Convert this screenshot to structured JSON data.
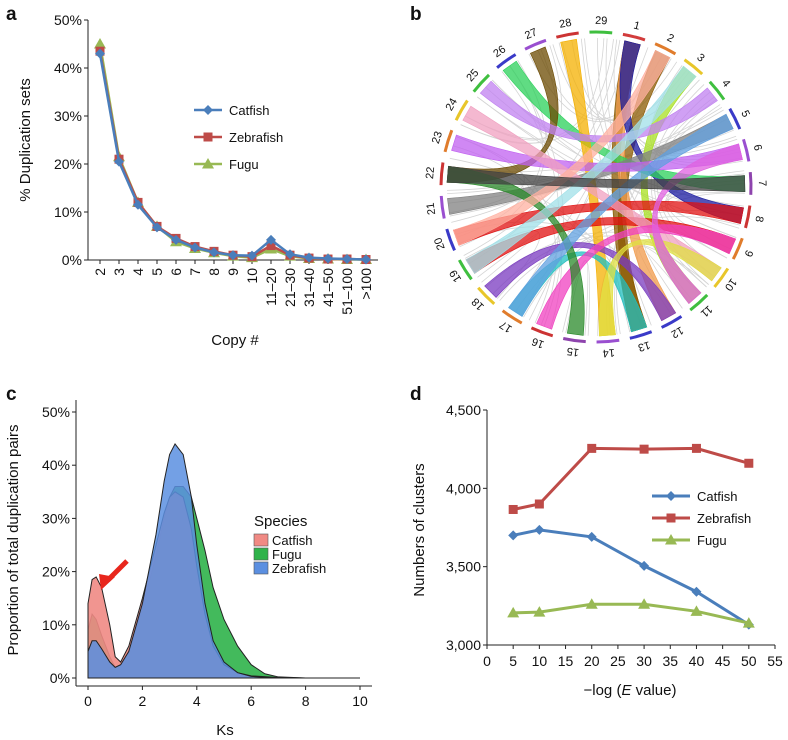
{
  "chart_data": [
    {
      "panel": "a",
      "type": "line",
      "title": "",
      "xlabel": "Copy #",
      "ylabel": "% Duplication sets",
      "categories": [
        "2",
        "3",
        "4",
        "5",
        "6",
        "7",
        "8",
        "9",
        "10",
        "11–20",
        "21–30",
        "31–40",
        "41–50",
        "51–100",
        ">100"
      ],
      "yticks": [
        "0%",
        "10%",
        "20%",
        "30%",
        "40%",
        "50%"
      ],
      "ylim": [
        0,
        50
      ],
      "legend": "right",
      "series": [
        {
          "name": "Catfish",
          "color": "#4a7ebb",
          "marker": "diamond",
          "values": [
            43,
            20.5,
            11.5,
            6.8,
            4.2,
            2.6,
            1.6,
            1.0,
            0.9,
            4.2,
            1.2,
            0.5,
            0.3,
            0.2,
            0.1
          ]
        },
        {
          "name": "Zebrafish",
          "color": "#be4b48",
          "marker": "square",
          "values": [
            43.5,
            21,
            12,
            7,
            4.5,
            2.8,
            1.8,
            1.0,
            0.7,
            3.0,
            1.0,
            0.4,
            0.2,
            0.2,
            0.1
          ]
        },
        {
          "name": "Fugu",
          "color": "#98b954",
          "marker": "triangle",
          "values": [
            45,
            21.5,
            12,
            7,
            3.8,
            2.4,
            1.5,
            0.8,
            0.5,
            2.3,
            0.8,
            0.3,
            0.2,
            0.1,
            0.1
          ]
        }
      ]
    },
    {
      "panel": "b",
      "type": "circos",
      "chromosomes": [
        "1",
        "2",
        "3",
        "4",
        "5",
        "6",
        "7",
        "8",
        "9",
        "10",
        "11",
        "12",
        "13",
        "14",
        "15",
        "16",
        "17",
        "18",
        "19",
        "20",
        "21",
        "22",
        "23",
        "24",
        "25",
        "26",
        "27",
        "28",
        "29"
      ],
      "chromosome_colors": [
        "#d23c3c",
        "#e07c2c",
        "#e8c62a",
        "#3fbf3f",
        "#3a3ac8",
        "#9a4fd0",
        "#8e44ad",
        "#cc3333",
        "#e07c2c",
        "#e8c62a",
        "#3fbf3f",
        "#3a3ac8",
        "#3a3ac8",
        "#9a4fd0",
        "#8e44ad",
        "#cc3333",
        "#e07c2c",
        "#e8c62a",
        "#3fbf3f",
        "#3a3ac8",
        "#9a4fd0",
        "#cc3333",
        "#e07c2c",
        "#e8c62a",
        "#3fbf3f",
        "#3a3ac8",
        "#9a4fd0",
        "#cc3333",
        "#3fbf3f"
      ],
      "links": [
        {
          "from": 1,
          "to": 13,
          "color": "#8b5a00"
        },
        {
          "from": 2,
          "to": 13,
          "color": "#8b5a00"
        },
        {
          "from": 1,
          "to": 12,
          "color": "#f09a4a"
        },
        {
          "from": 1,
          "to": 8,
          "color": "#1a1aa0"
        },
        {
          "from": 3,
          "to": 11,
          "color": "#a8e020"
        },
        {
          "from": 26,
          "to": 7,
          "color": "#2bd05a"
        },
        {
          "from": 28,
          "to": 14,
          "color": "#f4b000"
        },
        {
          "from": 27,
          "to": 22,
          "color": "#6b4a00"
        },
        {
          "from": 21,
          "to": 5,
          "color": "#808080"
        },
        {
          "from": 20,
          "to": 8,
          "color": "#e01010"
        },
        {
          "from": 19,
          "to": 9,
          "color": "#e01010"
        },
        {
          "from": 23,
          "to": 6,
          "color": "#c060f0"
        },
        {
          "from": 24,
          "to": 10,
          "color": "#f0a0c0"
        },
        {
          "from": 25,
          "to": 4,
          "color": "#c080f0"
        },
        {
          "from": 18,
          "to": 12,
          "color": "#7a3ac0"
        },
        {
          "from": 17,
          "to": 13,
          "color": "#20c0c0"
        },
        {
          "from": 16,
          "to": 9,
          "color": "#f040c0"
        },
        {
          "from": 15,
          "to": 22,
          "color": "#2a8a2a"
        },
        {
          "from": 14,
          "to": 10,
          "color": "#e0e040"
        },
        {
          "from": 11,
          "to": 6,
          "color": "#e060e0"
        },
        {
          "from": 3,
          "to": 19,
          "color": "#a0e0e8"
        },
        {
          "from": 2,
          "to": 20,
          "color": "#ffb0a0"
        },
        {
          "from": 5,
          "to": 17,
          "color": "#60a0e0"
        },
        {
          "from": 22,
          "to": 7,
          "color": "#404040"
        }
      ]
    },
    {
      "panel": "c",
      "type": "area",
      "xlabel": "Ks",
      "ylabel": "Proportion of total duplication pairs",
      "xticks": [
        "0",
        "2",
        "4",
        "6",
        "8",
        "10"
      ],
      "xlim": [
        0,
        10
      ],
      "yticks": [
        "0%",
        "10%",
        "20%",
        "30%",
        "40%",
        "50%"
      ],
      "ylim": [
        0,
        50
      ],
      "legend_title": "Species",
      "legend": "right",
      "annotation": "red arrow pointing to Catfish peak near Ks 0.3",
      "series": [
        {
          "name": "Catfish",
          "color": "#f08a84",
          "x": [
            0,
            0.15,
            0.3,
            0.5,
            0.8,
            1.0,
            1.2,
            1.5,
            2.0,
            2.5,
            2.8,
            3.0,
            3.2,
            3.5,
            3.8,
            4.0,
            4.3,
            4.6,
            5.0,
            5.5,
            6.0,
            7.0,
            8.0,
            10.0
          ],
          "y": [
            14,
            18.5,
            19,
            17,
            10,
            4,
            3,
            6,
            15,
            25,
            31,
            34,
            35,
            34,
            28,
            21,
            12,
            6,
            2.5,
            1,
            0.4,
            0.1,
            0,
            0
          ]
        },
        {
          "name": "Fugu",
          "color": "#2fb34a",
          "x": [
            0,
            0.15,
            0.3,
            0.5,
            0.8,
            1.0,
            1.2,
            1.5,
            2.0,
            2.5,
            2.8,
            3.0,
            3.2,
            3.5,
            3.8,
            4.0,
            4.3,
            4.6,
            5.0,
            5.5,
            6.0,
            6.5,
            7.0,
            8.0,
            10.0
          ],
          "y": [
            9,
            12,
            11,
            8,
            4,
            2,
            2.5,
            5,
            13,
            23,
            30,
            34,
            36,
            36,
            34,
            30,
            24,
            17,
            11,
            6,
            2.5,
            0.8,
            0.2,
            0,
            0
          ]
        },
        {
          "name": "Zebrafish",
          "color": "#5b8fe0",
          "x": [
            0,
            0.15,
            0.3,
            0.5,
            0.8,
            1.0,
            1.2,
            1.5,
            2.0,
            2.5,
            2.8,
            3.0,
            3.2,
            3.5,
            3.8,
            4.0,
            4.3,
            4.6,
            5.0,
            5.5,
            6.0,
            7.0,
            10.0
          ],
          "y": [
            5,
            7,
            7,
            5.5,
            3,
            2,
            2.5,
            5,
            14,
            27,
            37,
            42,
            44,
            42,
            34,
            25,
            14,
            7,
            3,
            1,
            0.3,
            0,
            0
          ]
        }
      ]
    },
    {
      "panel": "d",
      "type": "line",
      "xlabel": "−log (E value)",
      "ylabel": "Numbers of clusters",
      "xticks": [
        "0",
        "5",
        "10",
        "15",
        "20",
        "25",
        "30",
        "35",
        "40",
        "45",
        "50",
        "55"
      ],
      "xlim": [
        0,
        55
      ],
      "yticks": [
        "3,000",
        "3,500",
        "4,000",
        "4,500"
      ],
      "ylim": [
        3000,
        4500
      ],
      "legend": "right",
      "series": [
        {
          "name": "Catfish",
          "color": "#4a7ebb",
          "marker": "diamond",
          "x": [
            5,
            10,
            20,
            30,
            40,
            50
          ],
          "y": [
            3700,
            3735,
            3690,
            3505,
            3340,
            3130
          ]
        },
        {
          "name": "Zebrafish",
          "color": "#be4b48",
          "marker": "square",
          "x": [
            5,
            10,
            20,
            30,
            40,
            50
          ],
          "y": [
            3865,
            3900,
            4255,
            4250,
            4255,
            4160
          ]
        },
        {
          "name": "Fugu",
          "color": "#98b954",
          "marker": "triangle",
          "x": [
            5,
            10,
            20,
            30,
            40,
            50
          ],
          "y": [
            3205,
            3210,
            3260,
            3260,
            3215,
            3140
          ]
        }
      ]
    }
  ],
  "panel_labels": {
    "a": "a",
    "b": "b",
    "c": "c",
    "d": "d"
  },
  "axis_labels": {
    "a_x": "Copy #",
    "a_y": "% Duplication sets",
    "c_x": "Ks",
    "c_y": "Proportion of total duplication pairs",
    "d_x_pre": "−log (",
    "d_x_italic": "E",
    "d_x_post": " value)",
    "d_y": "Numbers of clusters"
  },
  "legend_c_title": "Species"
}
